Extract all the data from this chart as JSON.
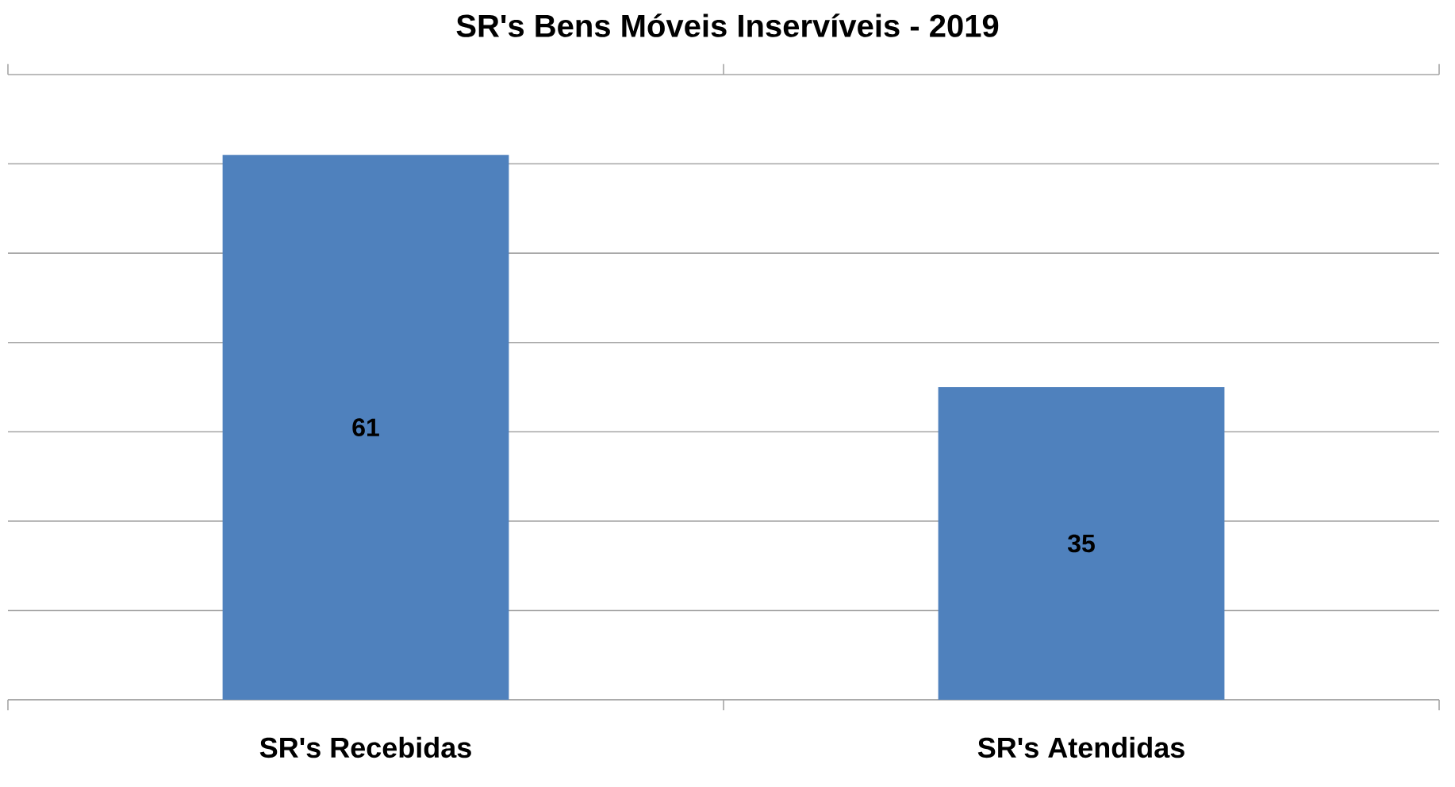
{
  "chart_data": {
    "type": "bar",
    "title": "SR's Bens Móveis Inservíveis - 2019",
    "categories": [
      "SR's Recebidas",
      "SR's Atendidas"
    ],
    "values": [
      61,
      35
    ],
    "color": "#4f81bd",
    "ylim": [
      0,
      70
    ],
    "yticks": [
      {
        "value": 0,
        "label": null
      },
      {
        "value": 10,
        "label": null
      },
      {
        "value": 20,
        "label": null
      },
      {
        "value": 30,
        "label": null
      },
      {
        "value": 40,
        "label": null
      },
      {
        "value": 50,
        "label": null
      },
      {
        "value": 60,
        "label": null
      },
      {
        "value": 70,
        "label": null
      }
    ],
    "tick_labels": "x",
    "grid": "y",
    "data_labels": true
  }
}
